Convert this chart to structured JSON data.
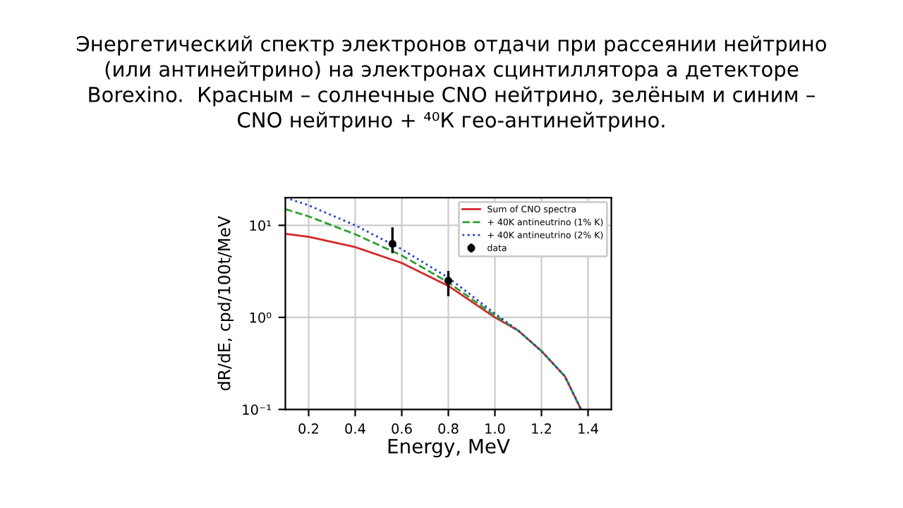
{
  "chart_data": {
    "type": "line",
    "title": "Энергетический спектр электронов отдачи при рассеянии нейтрино\n(или антинейтрино) на электронах сцинтиллятора а детекторе\nBorexino.  Красным – солнечные CNO нейтрино, зелёным и синим –\nCNO нейтрино + ⁴⁰К гео-антинейтрино.",
    "xlabel": "Energy, MeV",
    "ylabel": "dR/dE, cpd/100t/MeV",
    "log": "y",
    "grid": true,
    "legend": "top right",
    "xlim": [
      0.1,
      1.5
    ],
    "xticks": [
      0.2,
      0.4,
      0.6,
      0.8,
      {
        "value": 1.0,
        "label": "1.0"
      },
      1.2,
      1.4
    ],
    "ylim": [
      0.1,
      20
    ],
    "yticks": [
      {
        "value": 0.1,
        "label": "10⁻¹"
      },
      {
        "value": 1,
        "label": "10⁰"
      },
      {
        "value": 10,
        "label": "10¹"
      }
    ],
    "series": [
      {
        "name": "Sum of CNO spectra",
        "color": "#d62728",
        "line_style": "solid",
        "x": [
          0.1,
          0.2,
          0.4,
          0.6,
          0.8,
          1.0,
          1.1,
          1.2,
          1.3,
          1.37
        ],
        "values": [
          8.1,
          7.5,
          5.8,
          3.9,
          2.2,
          1.0,
          0.72,
          0.43,
          0.23,
          0.1
        ]
      },
      {
        "name": "+ 40K antineutrino (1% K)",
        "color": "#2ca02c",
        "line_style": "dashed",
        "x": [
          0.1,
          0.2,
          0.4,
          0.6,
          0.8,
          1.0,
          1.1,
          1.2,
          1.3,
          1.37
        ],
        "values": [
          15,
          12.5,
          8,
          4.7,
          2.4,
          1.05,
          0.72,
          0.43,
          0.23,
          0.1
        ]
      },
      {
        "name": "+ 40K antineutrino (2% K)",
        "color": "#1f3fd4",
        "line_style": "dotted",
        "x": [
          0.1,
          0.2,
          0.4,
          0.6,
          0.8,
          1.0,
          1.1,
          1.2,
          1.3,
          1.37
        ],
        "values": [
          20,
          16.5,
          10,
          5.5,
          2.7,
          1.1,
          0.72,
          0.43,
          0.23,
          0.1
        ]
      },
      {
        "name": "data",
        "type": "scatter",
        "color": "#000000",
        "marker": "circle",
        "x": [
          0.56,
          0.8
        ],
        "values": [
          6.3,
          2.5
        ],
        "errors": [
          [
            5,
            9.5
          ],
          [
            1.7,
            3.2
          ]
        ]
      }
    ]
  }
}
